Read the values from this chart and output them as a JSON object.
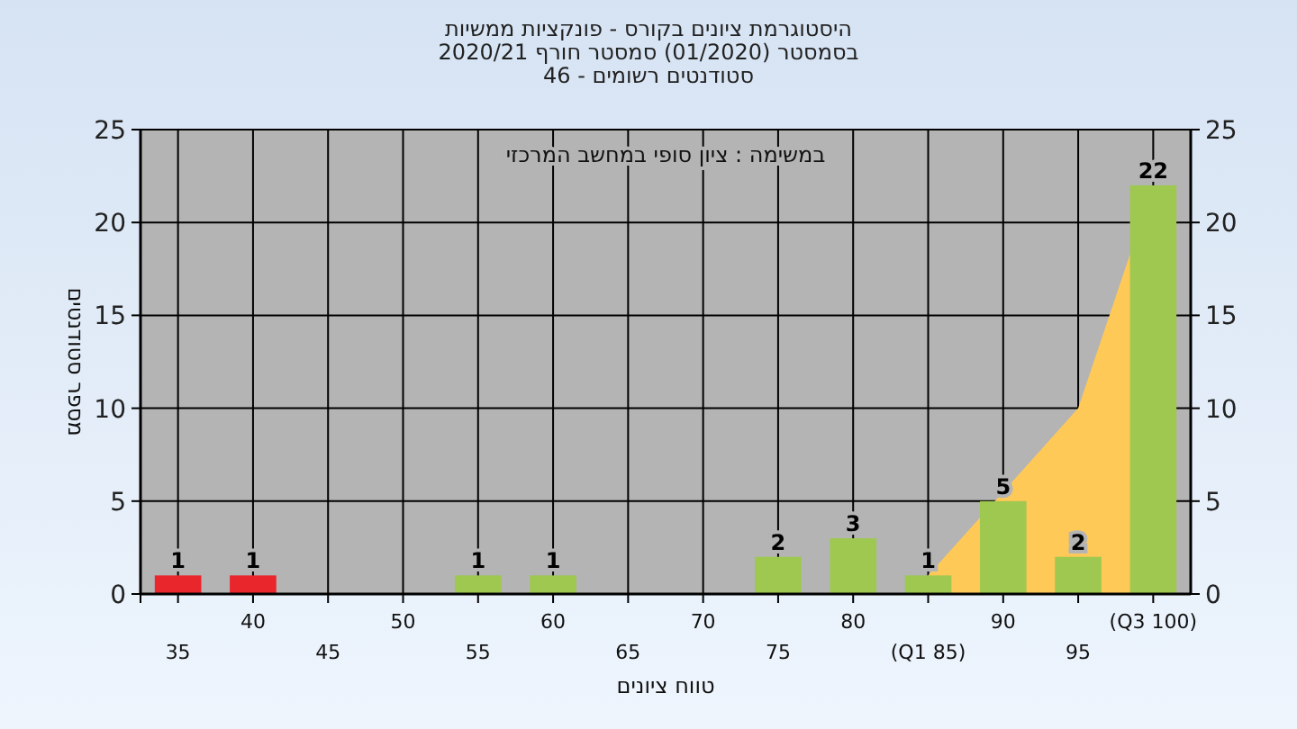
{
  "chart_data": {
    "type": "bar",
    "title": "היסטוגרמת ציונים בקורס - פונקציות ממשיות",
    "subtitle": "בסמסטר (01/2020) סמסטר חורף 2020/21\nסטודנטים רשומים - 46",
    "xlabel": "טווח ציונים",
    "ylabel": "מספר סטודנטים",
    "annotations": [
      "במשימה : ציון סופי במחשב המרכזי"
    ],
    "categories": [
      "35",
      "40",
      "45",
      "50",
      "55",
      "60",
      "65",
      "70",
      "75",
      "80",
      "(Q1 85)",
      "90",
      "95",
      "(Q3 100)"
    ],
    "series": [
      {
        "type": "area",
        "color": "#ffc957",
        "values": [
          null,
          null,
          null,
          null,
          null,
          null,
          null,
          null,
          null,
          null,
          1,
          null,
          10,
          22
        ]
      },
      {
        "colors": [
          "#e8262b",
          "#e8262b",
          "#9ec850",
          "#9ec850",
          "#9ec850",
          "#9ec850",
          "#9ec850",
          "#9ec850",
          "#9ec850",
          "#9ec850",
          "#9ec850",
          "#9ec850",
          "#9ec850",
          "#9ec850"
        ],
        "values": [
          1,
          1,
          0,
          0,
          1,
          1,
          0,
          0,
          2,
          3,
          1,
          5,
          2,
          22
        ],
        "value_labels": [
          "1",
          "1",
          null,
          null,
          "1",
          "1",
          null,
          null,
          "2",
          "3",
          "1",
          "5",
          "2",
          "22"
        ]
      }
    ],
    "ylim": [
      0,
      25
    ],
    "yticks": [
      0,
      5,
      10,
      15,
      20,
      25
    ],
    "y2lim": [
      0,
      25
    ],
    "y2ticks": [
      0,
      5,
      10,
      15,
      20,
      25
    ],
    "grid": true
  }
}
